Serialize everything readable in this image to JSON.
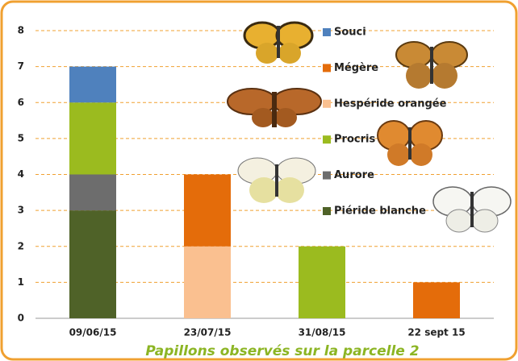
{
  "chart_data": {
    "type": "stacked_bar",
    "title": "Papillons observés sur la parcelle 2",
    "categories": [
      "09/06/15",
      "23/07/15",
      "31/08/15",
      "22 sept 15"
    ],
    "series": [
      {
        "name": "Piéride blanche",
        "color": "#4f6228",
        "values": [
          3,
          0,
          0,
          0
        ]
      },
      {
        "name": "Aurore",
        "color": "#6d6d6d",
        "values": [
          1,
          0,
          0,
          0
        ]
      },
      {
        "name": "Procris",
        "color": "#9bbb1f",
        "values": [
          2,
          0,
          2,
          0
        ]
      },
      {
        "name": "Hespéride orangée",
        "color": "#fac090",
        "values": [
          0,
          2,
          0,
          0
        ]
      },
      {
        "name": "Mégère",
        "color": "#e46c0a",
        "values": [
          0,
          2,
          0,
          1
        ]
      },
      {
        "name": "Souci",
        "color": "#4f81bd",
        "values": [
          1,
          0,
          0,
          0
        ]
      }
    ],
    "ylim": [
      0,
      8
    ],
    "yticks": [
      0,
      1,
      2,
      3,
      4,
      5,
      6,
      7,
      8
    ],
    "grid": true
  }
}
